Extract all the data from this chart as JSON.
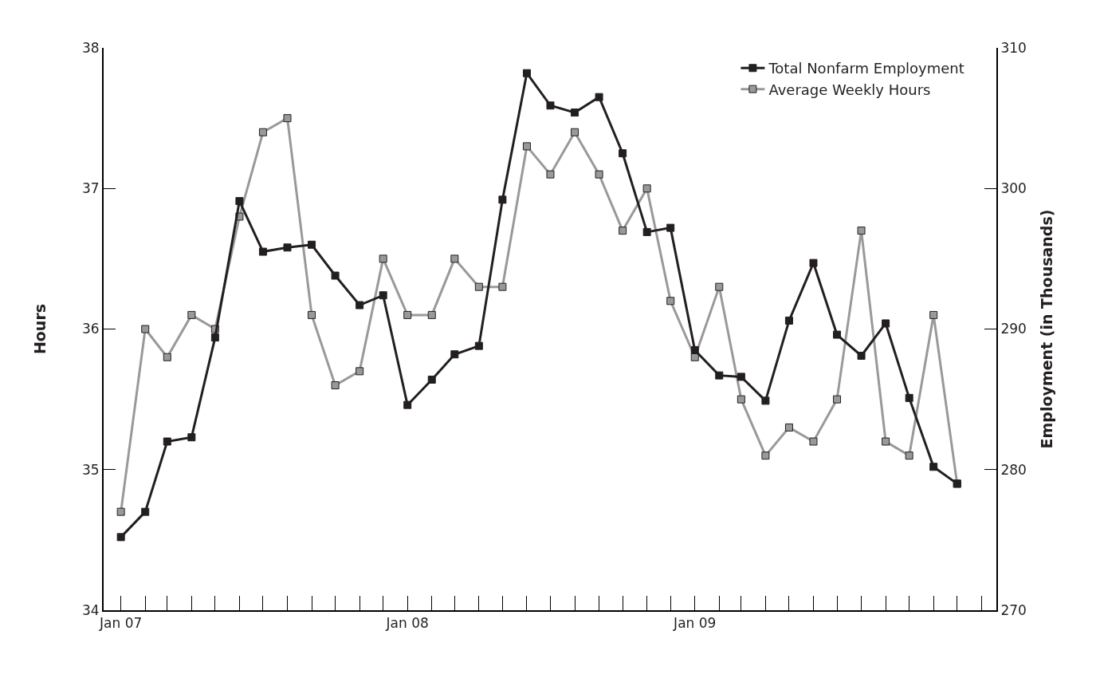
{
  "chart_data": {
    "type": "line",
    "ylabel": "Hours",
    "y2label": "Employment (in Thousands)",
    "x": [
      "2007-01",
      "2007-02",
      "2007-03",
      "2007-04",
      "2007-05",
      "2007-06",
      "2007-07",
      "2007-08",
      "2007-09",
      "2007-10",
      "2007-11",
      "2007-12",
      "2008-01",
      "2008-02",
      "2008-03",
      "2008-04",
      "2008-05",
      "2008-06",
      "2008-07",
      "2008-08",
      "2008-09",
      "2008-10",
      "2008-11",
      "2008-12",
      "2009-01",
      "2009-02",
      "2009-03",
      "2009-04",
      "2009-05",
      "2009-06",
      "2009-07",
      "2009-08",
      "2009-09",
      "2009-10",
      "2009-11",
      "2009-12"
    ],
    "series": [
      {
        "name": "Total Nonfarm Employment",
        "color": "#231f20",
        "axis": "y2",
        "values": [
          275.2,
          277.0,
          282.0,
          282.3,
          289.4,
          299.1,
          295.5,
          295.8,
          296.0,
          293.8,
          291.7,
          292.4,
          284.6,
          286.4,
          288.2,
          288.8,
          299.2,
          308.2,
          305.9,
          305.4,
          306.5,
          302.5,
          296.9,
          297.2,
          288.5,
          286.7,
          286.6,
          284.9,
          290.6,
          294.7,
          289.6,
          288.1,
          290.4,
          285.1,
          280.2,
          279.0
        ]
      },
      {
        "name": "Average Weekly Hours",
        "color": "#999999",
        "values": [
          34.7,
          36.0,
          35.8,
          36.1,
          36.0,
          36.8,
          37.4,
          37.5,
          36.1,
          35.6,
          35.7,
          36.5,
          36.1,
          36.1,
          36.5,
          36.3,
          36.3,
          37.3,
          37.1,
          37.4,
          37.1,
          36.7,
          37.0,
          36.2,
          35.8,
          36.3,
          35.5,
          35.1,
          35.3,
          35.2,
          35.5,
          36.7,
          35.2,
          35.1,
          36.1,
          34.9
        ]
      }
    ],
    "xlim": [
      "2006-12-10",
      "2010-01-20"
    ],
    "xticks": [
      {
        "value": "2007-01",
        "label": "Jan 07"
      },
      {
        "value": "2008-01",
        "label": "Jan 08"
      },
      {
        "value": "2009-01",
        "label": "Jan 09"
      }
    ],
    "ylim": [
      34,
      38
    ],
    "yticks": [
      34,
      35,
      36,
      37,
      38
    ],
    "y2lim": [
      270,
      310
    ],
    "y2ticks": [
      270,
      280,
      290,
      300,
      310
    ],
    "grid": false,
    "legend": "top right",
    "marker": "square",
    "line_style": "solid"
  }
}
